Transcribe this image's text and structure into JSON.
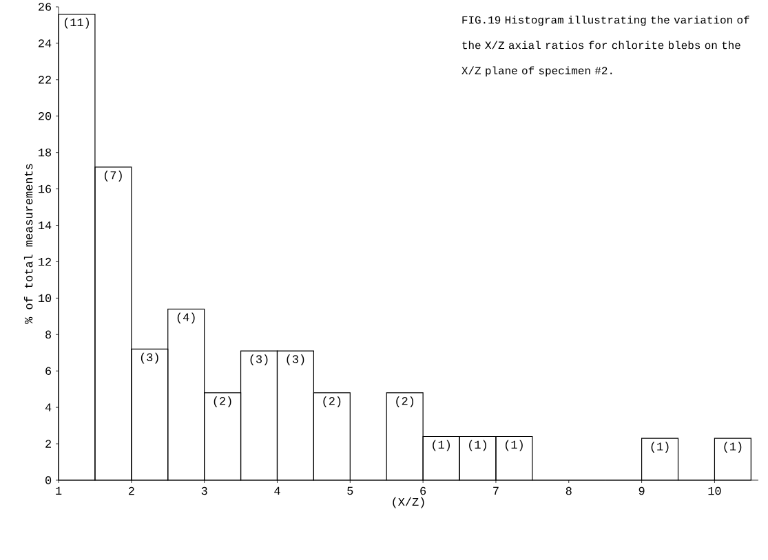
{
  "chart_data": {
    "type": "histogram",
    "title": "FIG.19 Histogram illustrating the variation of the X/Z axial ratios for chlorite blebs on the X/Z plane of specimen #2.",
    "xlabel": "(X/Z)",
    "ylabel": "% of total measurements",
    "bins": [
      1,
      1.5,
      2,
      2.5,
      3,
      3.5,
      4,
      4.5,
      5,
      5.5,
      6,
      6.5,
      7,
      7.5,
      8,
      8.5,
      9,
      9.5,
      10,
      10.5
    ],
    "values": [
      25.6,
      17.2,
      7.2,
      9.4,
      4.8,
      7.1,
      7.1,
      4.8,
      0,
      4.8,
      2.4,
      2.4,
      2.4,
      0,
      0,
      0,
      2.3,
      0,
      2.3
    ],
    "annotations": [
      {
        "text": "(11)",
        "x": 1.25,
        "y": 25.6
      },
      {
        "text": "(7)",
        "x": 1.75,
        "y": 17.2
      },
      {
        "text": "(3)",
        "x": 2.25,
        "y": 7.2
      },
      {
        "text": "(4)",
        "x": 2.75,
        "y": 9.4
      },
      {
        "text": "(2)",
        "x": 3.25,
        "y": 4.8
      },
      {
        "text": "(3)",
        "x": 3.75,
        "y": 7.1
      },
      {
        "text": "(3)",
        "x": 4.25,
        "y": 7.1
      },
      {
        "text": "(2)",
        "x": 4.75,
        "y": 4.8
      },
      {
        "text": "(2)",
        "x": 5.75,
        "y": 4.8
      },
      {
        "text": "(1)",
        "x": 6.25,
        "y": 2.4
      },
      {
        "text": "(1)",
        "x": 6.75,
        "y": 2.4
      },
      {
        "text": "(1)",
        "x": 7.25,
        "y": 2.4
      },
      {
        "text": "(1)",
        "x": 9.25,
        "y": 2.3
      },
      {
        "text": "(1)",
        "x": 10.25,
        "y": 2.3
      }
    ],
    "color": "#000000",
    "xlim": [
      1,
      10.6
    ],
    "ylim": [
      0,
      26
    ],
    "xticks": [
      1,
      2,
      3,
      4,
      5,
      6,
      7,
      8,
      9,
      10
    ],
    "yticks": [
      0,
      2,
      4,
      6,
      8,
      10,
      12,
      14,
      16,
      18,
      20,
      22,
      24,
      26
    ]
  }
}
